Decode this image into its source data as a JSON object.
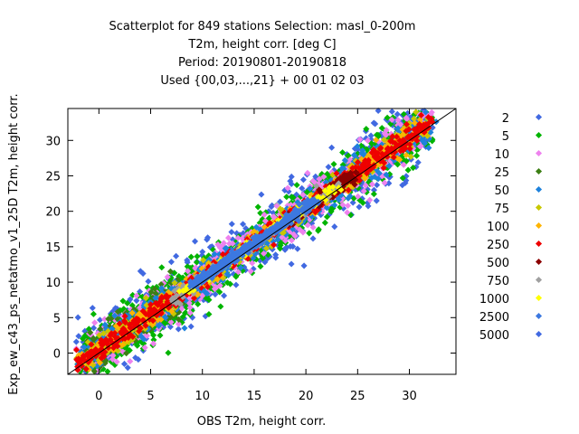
{
  "chart_data": {
    "type": "scatter",
    "title_lines": [
      "Scatterplot for  849 stations Selection: masl_0-200m",
      "T2m, height corr. [deg C]",
      "Period: 20190801-20190818",
      "Used {00,03,...,21} + 00 01 02 03"
    ],
    "xlabel": "OBS T2m, height corr.",
    "ylabel": "Exp_ew_c43_ps_netatmo_v1_25D T2m, height corr.",
    "xlim": [
      -3,
      34.5
    ],
    "ylim": [
      -3,
      34.5
    ],
    "x_ticks": [
      0,
      5,
      10,
      15,
      20,
      25,
      30
    ],
    "y_ticks": [
      0,
      5,
      10,
      15,
      20,
      25,
      30
    ],
    "reference_line": "y = x",
    "legend_placement": "right",
    "legend": [
      {
        "label": "2",
        "color": "#4169e1"
      },
      {
        "label": "5",
        "color": "#00b400"
      },
      {
        "label": "10",
        "color": "#ee82ee"
      },
      {
        "label": "25",
        "color": "#3c7f14"
      },
      {
        "label": "50",
        "color": "#1e82dc"
      },
      {
        "label": "75",
        "color": "#c8c800"
      },
      {
        "label": "100",
        "color": "#ffb400"
      },
      {
        "label": "250",
        "color": "#ee0000"
      },
      {
        "label": "500",
        "color": "#8b0000"
      },
      {
        "label": "750",
        "color": "#a0a0a0"
      },
      {
        "label": "1000",
        "color": "#ffff00"
      },
      {
        "label": "2500",
        "color": "#3c78e0"
      },
      {
        "label": "5000",
        "color": "#4169e1"
      }
    ]
  }
}
